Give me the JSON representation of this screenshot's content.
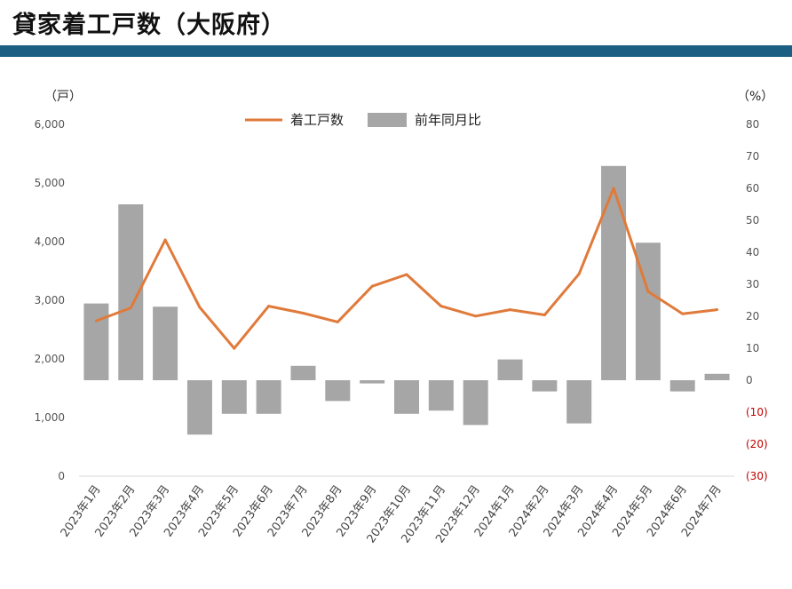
{
  "page": {
    "title": "貸家着工戸数（大阪府）"
  },
  "chart_data": {
    "type": "bar+line",
    "title": "",
    "categories": [
      "2023年1月",
      "2023年2月",
      "2023年3月",
      "2023年4月",
      "2023年5月",
      "2023年6月",
      "2023年7月",
      "2023年8月",
      "2023年9月",
      "2023年10月",
      "2023年11月",
      "2023年12月",
      "2024年1月",
      "2024年2月",
      "2024年3月",
      "2024年4月",
      "2024年5月",
      "2024年6月",
      "2024年7月"
    ],
    "series": [
      {
        "name": "着工戸数",
        "type": "line",
        "axis": "left",
        "color": "#e07a3a",
        "values": [
          2650,
          2870,
          4030,
          2880,
          2180,
          2900,
          2780,
          2630,
          3240,
          3440,
          2900,
          2730,
          2840,
          2750,
          3450,
          4910,
          3150,
          2770,
          2840
        ]
      },
      {
        "name": "前年同月比",
        "type": "bar",
        "axis": "right",
        "color": "#a6a6a6",
        "values": [
          24,
          55,
          23,
          -17,
          -10.5,
          -10.5,
          4.5,
          -6.5,
          -1,
          -10.5,
          -9.5,
          -14,
          6.5,
          -3.5,
          -13.5,
          67,
          43,
          -3.5,
          2
        ]
      }
    ],
    "y_left": {
      "unit_label": "（戸）",
      "min": 0,
      "max": 6000,
      "ticks": [
        "0",
        "1,000",
        "2,000",
        "3,000",
        "4,000",
        "5,000",
        "6,000"
      ]
    },
    "y_right": {
      "unit_label": "（%）",
      "min": -30,
      "max": 80,
      "ticks": [
        "(30)",
        "(20)",
        "(10)",
        "0",
        "10",
        "20",
        "30",
        "40",
        "50",
        "60",
        "70",
        "80"
      ]
    },
    "legend": {
      "position": "top-center"
    },
    "grid": false
  }
}
